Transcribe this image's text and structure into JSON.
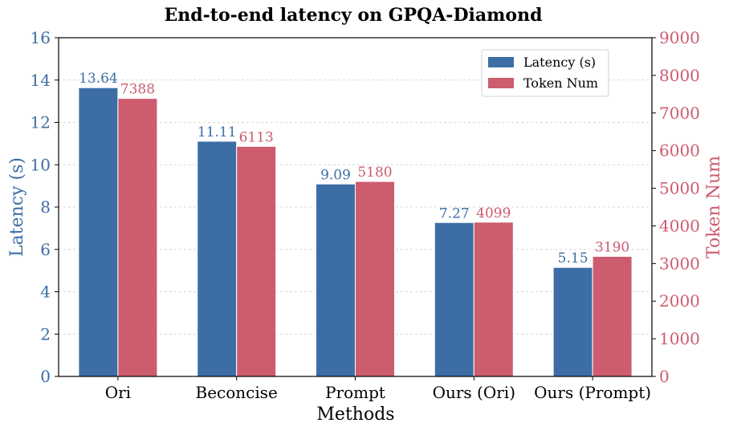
{
  "chart_data": {
    "type": "bar",
    "title": "End-to-end latency on GPQA-Diamond",
    "xlabel": "Methods",
    "ylabel": "Latency (s)",
    "y2label": "Token Num",
    "categories": [
      "Ori",
      "Beconcise",
      "Prompt",
      "Ours (Ori)",
      "Ours (Prompt)"
    ],
    "series": [
      {
        "name": "Latency (s)",
        "axis": "left",
        "color": "#3c6ea5",
        "values": [
          13.64,
          11.11,
          9.09,
          7.27,
          5.15
        ],
        "labels": [
          "13.64",
          "11.11",
          "9.09",
          "7.27",
          "5.15"
        ]
      },
      {
        "name": "Token Num",
        "axis": "right",
        "color": "#cc5c6e",
        "values": [
          7388,
          6113,
          5180,
          4099,
          3190
        ],
        "labels": [
          "7388",
          "6113",
          "5180",
          "4099",
          "3190"
        ]
      }
    ],
    "ylim": [
      0,
      16
    ],
    "y2lim": [
      0,
      9000
    ],
    "yticks": [
      "0",
      "2",
      "4",
      "6",
      "8",
      "10",
      "12",
      "14",
      "16"
    ],
    "y2ticks": [
      "0",
      "1000",
      "2000",
      "3000",
      "4000",
      "5000",
      "6000",
      "7000",
      "8000",
      "9000"
    ],
    "grid": "horizontal dashed",
    "legend_position": "top-right",
    "left_axis_color": "#3c6ea5",
    "right_axis_color": "#cc5c6e"
  }
}
